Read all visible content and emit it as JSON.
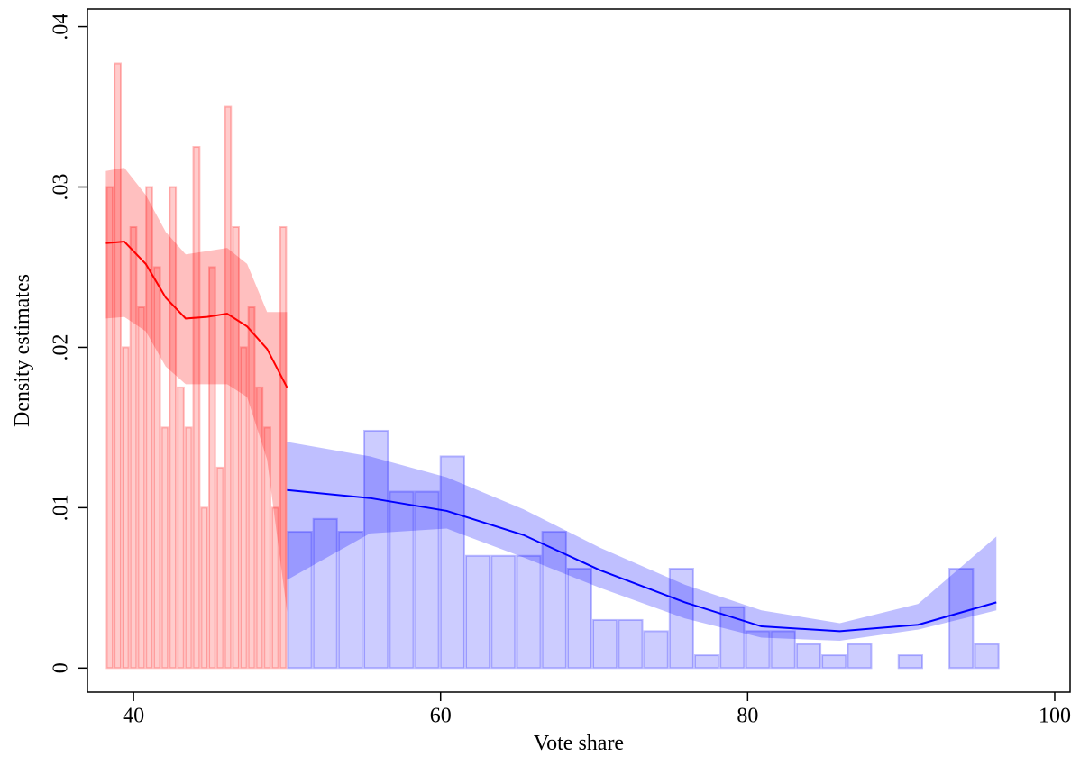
{
  "chart_data": {
    "type": "histogram",
    "x_label": "Vote share",
    "y_label": "Density estimates",
    "xlim": [
      37.0,
      101.0
    ],
    "ylim": [
      -0.0015,
      0.0411
    ],
    "xticks": [
      40,
      60,
      80,
      100
    ],
    "yticks": [
      0,
      {
        "value": 0.01,
        "label": ".01"
      },
      {
        "value": 0.02,
        "label": ".02"
      },
      {
        "value": 0.03,
        "label": ".03"
      },
      {
        "value": 0.04,
        "label": ".04"
      }
    ],
    "series": [
      {
        "color": "#ff0000",
        "bins": [
          38.2,
          38.71,
          39.23,
          39.74,
          40.25,
          40.77,
          41.28,
          41.79,
          42.3,
          42.82,
          43.33,
          43.84,
          44.36,
          44.87,
          45.38,
          45.9,
          46.41,
          46.92,
          47.43,
          47.95,
          48.46,
          48.97,
          49.49,
          50.0
        ],
        "values": [
          0.03,
          0.0377,
          0.02,
          0.0275,
          0.0225,
          0.03,
          0.025,
          0.015,
          0.03,
          0.0175,
          0.015,
          0.0325,
          0.01,
          0.025,
          0.0125,
          0.035,
          0.0275,
          0.02,
          0.0225,
          0.0175,
          0.015,
          0.01,
          0.0275
        ]
      },
      {
        "color": "#0000ff",
        "bins": [
          50.0,
          51.66,
          53.31,
          54.97,
          56.63,
          58.29,
          59.94,
          61.6,
          63.26,
          64.91,
          66.57,
          68.23,
          69.88,
          71.54,
          73.2,
          74.86,
          76.51,
          78.17,
          79.83,
          81.48,
          83.14,
          84.8,
          86.46,
          88.11,
          89.77,
          91.43,
          93.08,
          94.74,
          96.4
        ],
        "values": [
          0.0085,
          0.0093,
          0.0085,
          0.0148,
          0.011,
          0.011,
          0.0132,
          0.007,
          0.007,
          0.007,
          0.0085,
          0.0062,
          0.003,
          0.003,
          0.0023,
          0.0062,
          0.0008,
          0.0038,
          0.0023,
          0.0023,
          0.0015,
          0.0008,
          0.0015,
          0,
          0.0008,
          0,
          0.0062,
          0.0015
        ]
      }
    ],
    "fits": [
      {
        "color": "#ff0000",
        "x": [
          38.2,
          39.4,
          40.8,
          42.1,
          43.4,
          44.8,
          46.1,
          47.4,
          48.7,
          50.0
        ],
        "values": [
          0.0265,
          0.0266,
          0.0252,
          0.0231,
          0.0218,
          0.0219,
          0.0221,
          0.0213,
          0.0199,
          0.0175
        ],
        "lower": [
          0.0218,
          0.0219,
          0.021,
          0.0188,
          0.0177,
          0.0177,
          0.0177,
          0.0169,
          0.013,
          0.0035
        ],
        "upper": [
          0.031,
          0.0312,
          0.0295,
          0.0272,
          0.0258,
          0.026,
          0.0262,
          0.0252,
          0.0222,
          0.0222
        ]
      },
      {
        "color": "#0000ff",
        "x": [
          50.0,
          55.4,
          60.4,
          65.4,
          70.4,
          75.9,
          80.9,
          86.0,
          91.1,
          96.2
        ],
        "values": [
          0.0111,
          0.0106,
          0.0098,
          0.0083,
          0.0061,
          0.0041,
          0.0026,
          0.0023,
          0.0027,
          0.0041
        ],
        "lower": [
          0.0055,
          0.0084,
          0.0087,
          0.0069,
          0.005,
          0.0031,
          0.0019,
          0.0017,
          0.0024,
          0.0036
        ],
        "upper": [
          0.0141,
          0.0132,
          0.0119,
          0.0099,
          0.0075,
          0.0052,
          0.0036,
          0.0028,
          0.004,
          0.0082
        ]
      }
    ]
  }
}
